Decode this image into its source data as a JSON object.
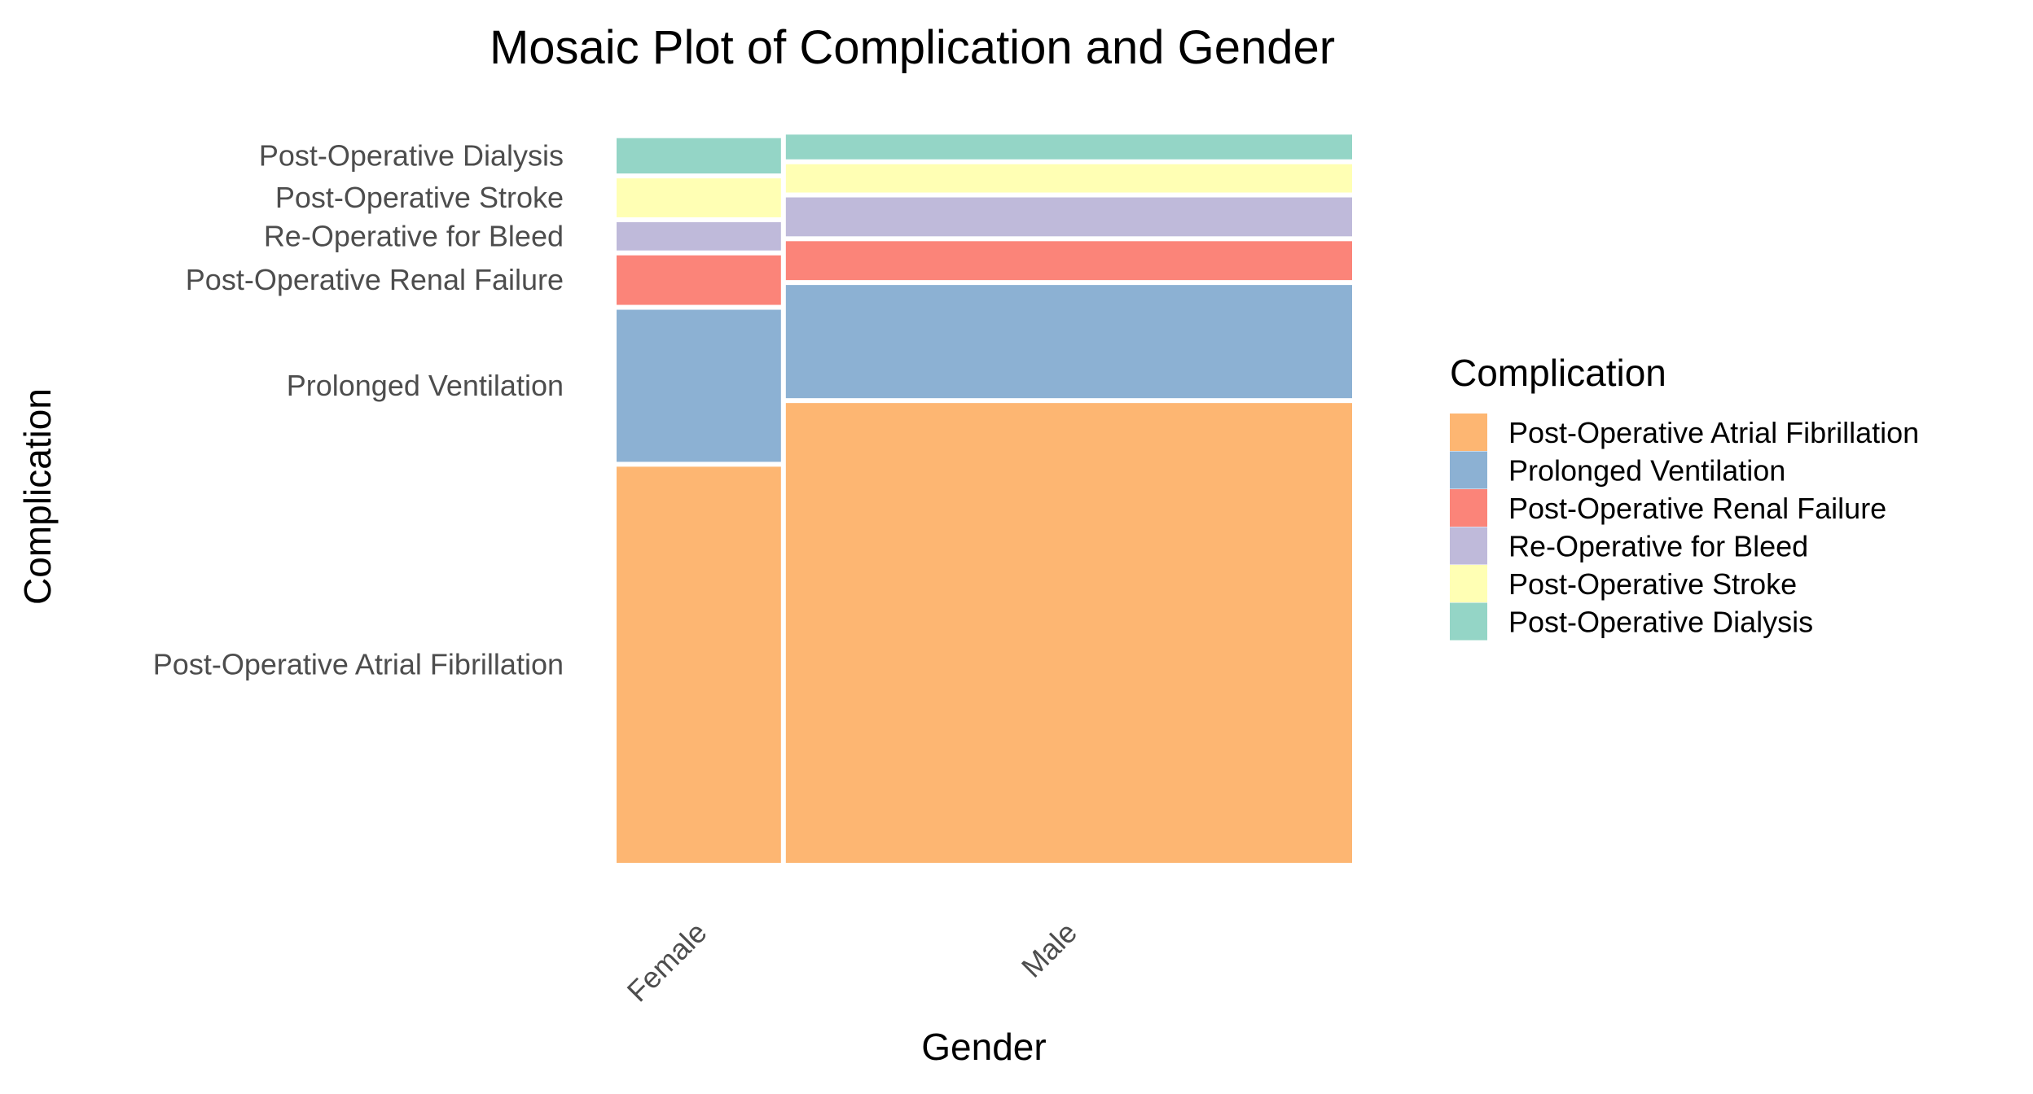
{
  "chart_data": {
    "type": "mosaic",
    "title": "Mosaic Plot of Complication and Gender",
    "xlabel": "Gender",
    "ylabel": "Complication",
    "legend_title": "Complication",
    "legend_position": "right",
    "grid": false,
    "x_categories": [
      "Female",
      "Male"
    ],
    "x_proportions": [
      0.225,
      0.775
    ],
    "y_categories": [
      "Post-Operative Atrial Fibrillation",
      "Prolonged Ventilation",
      "Post-Operative Renal Failure",
      "Re-Operative for Bleed",
      "Post-Operative Stroke",
      "Post-Operative Dialysis"
    ],
    "y_axis_labels": [
      "Post-Operative Atrial Fibrillation",
      "Prolonged Ventilation",
      "Post-Operative Renal Failure",
      "Re-Operative for Bleed",
      "Post-Operative Stroke",
      "Post-Operative Dialysis"
    ],
    "colors": [
      "#fdb672",
      "#8cb1d3",
      "#fb8479",
      "#bfbada",
      "#ffffb4",
      "#94d5c6"
    ],
    "series": [
      {
        "x": "Female",
        "values": [
          0.56,
          0.215,
          0.07,
          0.04,
          0.055,
          0.05
        ]
      },
      {
        "x": "Male",
        "values": [
          0.65,
          0.16,
          0.055,
          0.055,
          0.04,
          0.035
        ]
      }
    ]
  }
}
